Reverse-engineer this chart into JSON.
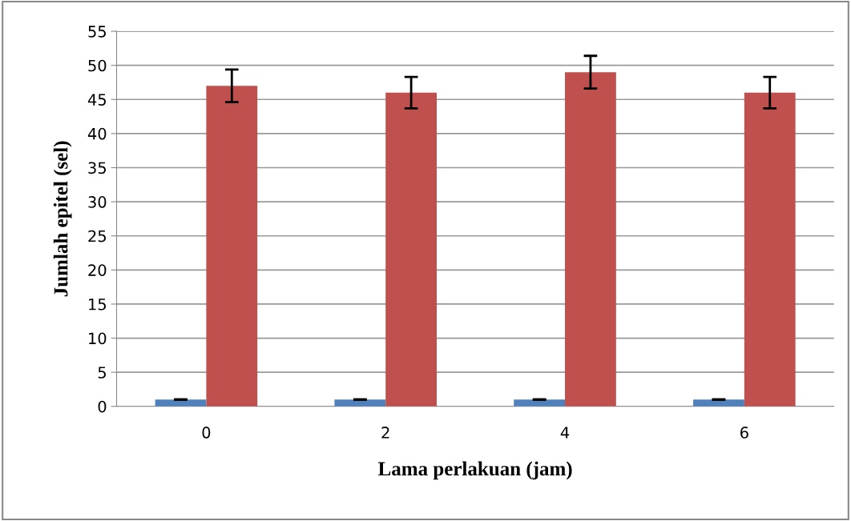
{
  "chart_data": {
    "type": "bar",
    "xlabel": "Lama perlakuan (jam)",
    "ylabel": "Jumlah epitel (sel)",
    "categories": [
      "0",
      "2",
      "4",
      "6"
    ],
    "series": [
      {
        "color": "#4f81bd",
        "values": [
          1,
          1,
          1,
          1
        ],
        "errors": [
          0,
          0,
          0,
          0
        ]
      },
      {
        "color": "#c0504d",
        "values": [
          47,
          46,
          49,
          46
        ],
        "errors": [
          2.4,
          2.3,
          2.4,
          2.3
        ]
      }
    ],
    "ylim": [
      0,
      55
    ],
    "yticks": [
      0,
      5,
      10,
      15,
      20,
      25,
      30,
      35,
      40,
      45,
      50,
      55
    ],
    "grid": "y",
    "legend": false
  }
}
